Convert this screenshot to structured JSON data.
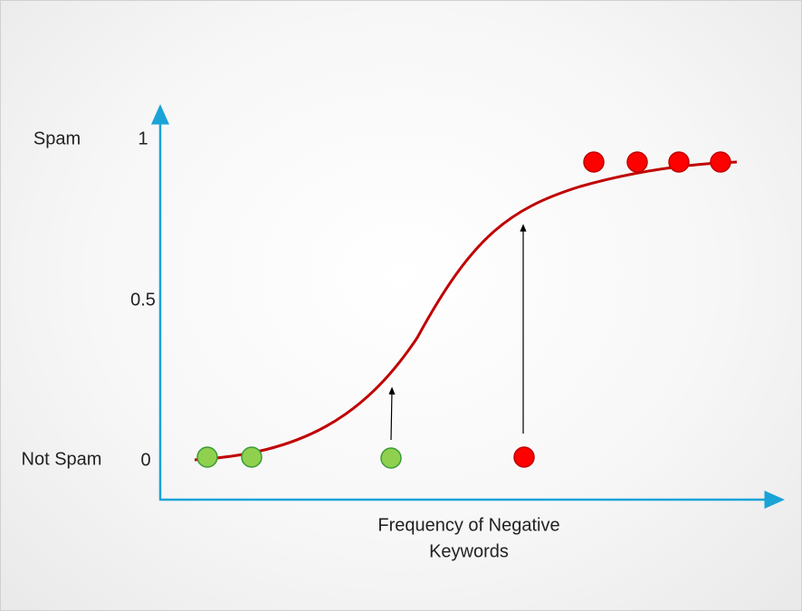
{
  "y_axis": {
    "top_label": "Spam",
    "top_tick": "1",
    "mid_tick": "0.5",
    "bottom_label": "Not Spam",
    "bottom_tick": "0"
  },
  "x_axis": {
    "label_lines": [
      "Frequency of Negative",
      "Keywords"
    ]
  }
}
